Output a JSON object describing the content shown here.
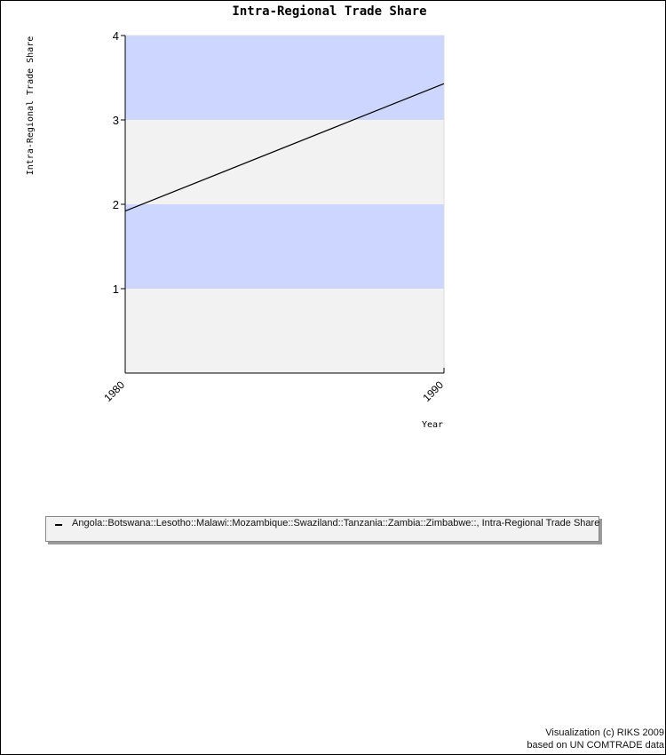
{
  "chart_data": {
    "type": "line",
    "title": "Intra-Regional Trade Share",
    "xlabel": "Year",
    "ylabel": "Intra-Regional Trade Share",
    "x_ticks": [
      "1980",
      "1990"
    ],
    "y_ticks": [
      "1",
      "2",
      "3",
      "4"
    ],
    "xlim": [
      1980,
      1990
    ],
    "ylim": [
      0,
      4
    ],
    "grid": "alternating horizontal bands",
    "band_colors": [
      "#f2f2f2",
      "#ccd6ff"
    ],
    "series": [
      {
        "name": "Angola::Botswana::Lesotho::Malawi::Mozambique::Swaziland::Tanzania::Zambia::Zimbabwe::, Intra-Regional Trade Share",
        "color": "#000000",
        "x": [
          1980,
          1990
        ],
        "y": [
          1.92,
          3.43
        ]
      }
    ],
    "legend_position": "bottom"
  },
  "credits": {
    "line1": "Visualization (c) RIKS 2009",
    "line2": "based on UN COMTRADE data"
  }
}
